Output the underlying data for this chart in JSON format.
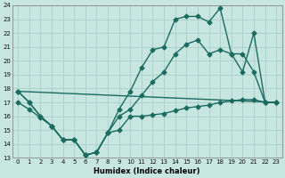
{
  "xlabel": "Humidex (Indice chaleur)",
  "ylabel": "",
  "bg_color": "#c8e6e0",
  "grid_color": "#a8cec8",
  "line_color": "#1a6b60",
  "xlim": [
    -0.5,
    23.5
  ],
  "ylim": [
    13,
    24
  ],
  "xticks": [
    0,
    1,
    2,
    3,
    4,
    5,
    6,
    7,
    8,
    9,
    10,
    11,
    12,
    13,
    14,
    15,
    16,
    17,
    18,
    19,
    20,
    21,
    22,
    23
  ],
  "yticks": [
    13,
    14,
    15,
    16,
    17,
    18,
    19,
    20,
    21,
    22,
    23,
    24
  ],
  "series_min_x": [
    0,
    1,
    2,
    3,
    4,
    5,
    6,
    7,
    8,
    9,
    10,
    11,
    12,
    13,
    14,
    15,
    16,
    17,
    18,
    19,
    20,
    21,
    22,
    23
  ],
  "series_min_y": [
    17.0,
    16.5,
    15.9,
    15.3,
    14.3,
    14.3,
    13.2,
    13.4,
    14.8,
    15.0,
    16.0,
    16.0,
    16.1,
    16.2,
    16.4,
    16.6,
    16.7,
    16.8,
    17.0,
    17.1,
    17.2,
    17.2,
    17.0,
    17.0
  ],
  "series_max_x": [
    0,
    1,
    2,
    3,
    4,
    5,
    6,
    7,
    8,
    9,
    10,
    11,
    12,
    13,
    14,
    15,
    16,
    17,
    18,
    19,
    20,
    21,
    22,
    23
  ],
  "series_max_y": [
    17.8,
    17.0,
    16.0,
    15.3,
    14.3,
    14.3,
    13.2,
    13.4,
    14.8,
    16.5,
    17.8,
    19.5,
    20.8,
    21.0,
    23.0,
    23.2,
    23.2,
    22.8,
    23.8,
    20.5,
    19.2,
    22.0,
    17.0,
    17.0
  ],
  "series_avg_x": [
    0,
    1,
    2,
    3,
    4,
    5,
    6,
    7,
    8,
    9,
    10,
    11,
    12,
    13,
    14,
    15,
    16,
    17,
    18,
    19,
    20,
    21,
    22,
    23
  ],
  "series_avg_y": [
    17.8,
    17.0,
    16.0,
    15.3,
    14.3,
    14.3,
    13.2,
    13.4,
    14.8,
    16.0,
    16.5,
    17.5,
    18.5,
    19.2,
    20.5,
    21.2,
    21.5,
    20.5,
    20.8,
    20.5,
    20.5,
    19.2,
    17.0,
    17.0
  ],
  "series_trend_x": [
    0,
    23
  ],
  "series_trend_y": [
    17.8,
    17.0
  ],
  "marker": "D",
  "markersize": 2.5,
  "linewidth": 1.0
}
